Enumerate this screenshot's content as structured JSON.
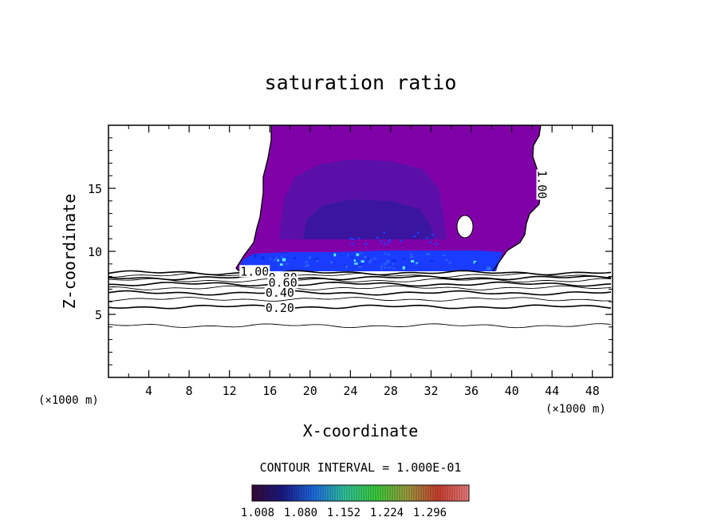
{
  "chart_data": {
    "type": "contour",
    "title": "saturation ratio",
    "xlabel": "X-coordinate",
    "ylabel": "Z-coordinate",
    "x_unit_left": "(×1000 m)",
    "x_unit_right": "(×1000 m)",
    "xlim": [
      0,
      50
    ],
    "ylim": [
      0,
      20
    ],
    "x_ticks": [
      4,
      8,
      12,
      16,
      20,
      24,
      28,
      32,
      36,
      40,
      44,
      48
    ],
    "y_ticks": [
      5,
      10,
      15
    ],
    "contour_interval_text": "CONTOUR INTERVAL = 1.000E-01",
    "contour_labels": [
      {
        "text": "1.00",
        "x": 14.5,
        "z": 8.4
      },
      {
        "text": "0.80",
        "x": 17.3,
        "z": 7.9
      },
      {
        "text": "0.60",
        "x": 17.3,
        "z": 7.5
      },
      {
        "text": "0.40",
        "x": 17.0,
        "z": 6.7
      },
      {
        "text": "0.20",
        "x": 17.0,
        "z": 5.5
      },
      {
        "text": "1.00",
        "x": 43.0,
        "z": 15.3
      }
    ],
    "contour_levels_z": [
      {
        "level": 0.1,
        "z": 4.1
      },
      {
        "level": 0.2,
        "z": 5.6
      },
      {
        "level": 0.3,
        "z": 6.2
      },
      {
        "level": 0.4,
        "z": 6.7
      },
      {
        "level": 0.5,
        "z": 7.1
      },
      {
        "level": 0.6,
        "z": 7.4
      },
      {
        "level": 0.7,
        "z": 7.7
      },
      {
        "level": 0.8,
        "z": 7.9
      },
      {
        "level": 0.9,
        "z": 8.1
      },
      {
        "level": 1.0,
        "z": 8.3
      }
    ],
    "colorbar": {
      "tick_labels": [
        "1.008",
        "1.080",
        "1.152",
        "1.224",
        "1.296"
      ],
      "colors": [
        "#3a0a3a",
        "#1a1a8a",
        "#1e6ee8",
        "#32c8a0",
        "#3cd23c",
        "#a0a040",
        "#d04030",
        "#f08080"
      ]
    },
    "fill_colors": {
      "supersat_low": "#8000a8",
      "supersat_mid": "#5a10a8",
      "supersat_core": "#3a16a0",
      "supersat_base": "#1a3cff"
    }
  }
}
